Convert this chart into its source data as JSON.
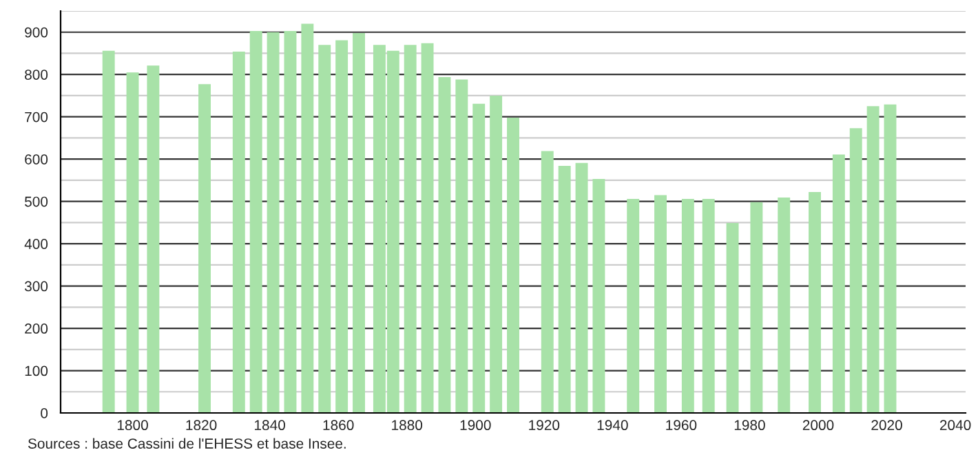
{
  "chart_data": {
    "type": "bar",
    "x": [
      1793,
      1800,
      1806,
      1821,
      1831,
      1836,
      1841,
      1846,
      1851,
      1856,
      1861,
      1866,
      1872,
      1876,
      1881,
      1886,
      1891,
      1896,
      1901,
      1906,
      1911,
      1921,
      1926,
      1931,
      1936,
      1946,
      1954,
      1962,
      1968,
      1975,
      1982,
      1990,
      1999,
      2006,
      2011,
      2016,
      2021
    ],
    "values": [
      856,
      805,
      821,
      777,
      854,
      903,
      900,
      903,
      920,
      870,
      881,
      898,
      870,
      856,
      870,
      874,
      794,
      788,
      731,
      750,
      698,
      619,
      584,
      591,
      553,
      506,
      515,
      506,
      506,
      449,
      498,
      509,
      522,
      611,
      673,
      725,
      729
    ],
    "color": "#a8e2a8",
    "xlim": [
      1779,
      2043
    ],
    "xticks": [
      1800,
      1820,
      1840,
      1860,
      1880,
      1900,
      1920,
      1940,
      1960,
      1980,
      2000,
      2020,
      2040
    ],
    "ylim": [
      0,
      950
    ],
    "yticks": [
      0,
      100,
      200,
      300,
      400,
      500,
      600,
      700,
      800,
      900
    ],
    "grid": "y",
    "annotations": [
      "Sources : base Cassini de l'EHESS et base Insee."
    ]
  }
}
